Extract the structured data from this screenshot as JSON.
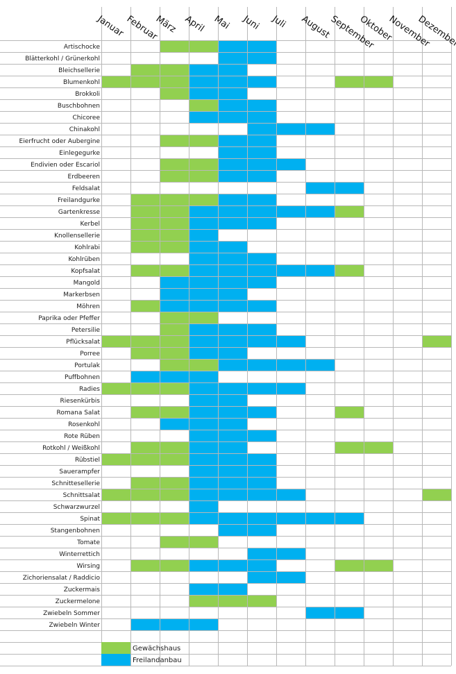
{
  "chart_data": {
    "type": "heatmap",
    "months": [
      "Januar",
      "Februar",
      "März",
      "April",
      "Mai",
      "Juni",
      "Juli",
      "August",
      "September",
      "Oktober",
      "November",
      "Dezember"
    ],
    "colors": {
      "gewaechshaus": "#92d050",
      "freiland": "#00b0f0",
      "grid": "#b8b8b8"
    },
    "legend": [
      {
        "key": "G",
        "label": "Gewächshaus",
        "color": "#92d050"
      },
      {
        "key": "F",
        "label": "Freilandanbau",
        "color": "#00b0f0"
      }
    ],
    "rows": [
      {
        "name": "Artischocke",
        "cells": "--GGFF------"
      },
      {
        "name": "Blätterkohl  / Grünerkohl",
        "cells": "----FF------"
      },
      {
        "name": "Bleichsellerie",
        "cells": "-GGFF-------"
      },
      {
        "name": "Blumenkohl",
        "cells": "GGGFFF--GG--"
      },
      {
        "name": "Brokkoli",
        "cells": "--GFF-------"
      },
      {
        "name": "Buschbohnen",
        "cells": "---GFF------"
      },
      {
        "name": "Chicoree",
        "cells": "---FFF------"
      },
      {
        "name": "Chinakohl",
        "cells": "-----FFF----"
      },
      {
        "name": "Eierfrucht  oder  Aubergine",
        "cells": "--GGFF------"
      },
      {
        "name": "Einlegegurke",
        "cells": "----FF------"
      },
      {
        "name": "Endivien oder Escariol",
        "cells": "--GGFFF-----"
      },
      {
        "name": "Erdbeeren",
        "cells": "--GGFF------"
      },
      {
        "name": "Feldsalat",
        "cells": "-------FF---"
      },
      {
        "name": "Freilandgurke",
        "cells": "-GGGFF------"
      },
      {
        "name": "Gartenkresse",
        "cells": "-GGFFFFFG---"
      },
      {
        "name": "Kerbel",
        "cells": "-GGFFF------"
      },
      {
        "name": "Knollensellerie",
        "cells": "-GGF--------"
      },
      {
        "name": "Kohlrabi",
        "cells": "-GGFF-------"
      },
      {
        "name": "Kohlrüben",
        "cells": "---FFF------"
      },
      {
        "name": "Kopfsalat",
        "cells": "-GGFFFFFG---"
      },
      {
        "name": "Mangold",
        "cells": "--FFFF------"
      },
      {
        "name": "Markerbsen",
        "cells": "--FFF-------"
      },
      {
        "name": "Möhren",
        "cells": "-GFFFF------"
      },
      {
        "name": "Paprika oder Pfeffer",
        "cells": "--GG--------"
      },
      {
        "name": "Petersilie",
        "cells": "--GFFF------"
      },
      {
        "name": "Pflücksalat",
        "cells": "GGGFFFF----G"
      },
      {
        "name": "Porree",
        "cells": "-GGFF-------"
      },
      {
        "name": "Portulak",
        "cells": "--GGFFFF----"
      },
      {
        "name": "Puffbohnen",
        "cells": "-FFF--------"
      },
      {
        "name": "Radies",
        "cells": "GGGFFFF-----"
      },
      {
        "name": "Riesenkürbis",
        "cells": "---FF-------"
      },
      {
        "name": "Romana Salat",
        "cells": "-GGFFF--G---"
      },
      {
        "name": "Rosenkohl",
        "cells": "--FFF-------"
      },
      {
        "name": "Rote Rüben",
        "cells": "---FFF------"
      },
      {
        "name": "Rotkohl  /  Weißkohl",
        "cells": "-GGFF---GG--"
      },
      {
        "name": "Rübstiel",
        "cells": "GGGFFF------"
      },
      {
        "name": "Sauerampfer",
        "cells": "---FFF------"
      },
      {
        "name": "Schnittesellerie",
        "cells": "-GGFFF------"
      },
      {
        "name": "Schnittsalat",
        "cells": "GGGFFFF----G"
      },
      {
        "name": "Schwarzwurzel",
        "cells": "---F--------"
      },
      {
        "name": "Spinat",
        "cells": "GGGFFFFFF---"
      },
      {
        "name": "Stangenbohnen",
        "cells": "----FF------"
      },
      {
        "name": "Tomate",
        "cells": "--GG--------"
      },
      {
        "name": "Winterrettich",
        "cells": "-----FF-----"
      },
      {
        "name": "Wirsing",
        "cells": "-GGFFF--GG--"
      },
      {
        "name": "Zichoriensalat / Raddicio",
        "cells": "-----FF-----"
      },
      {
        "name": "Zuckermais",
        "cells": "---FF-------"
      },
      {
        "name": "Zuckermelone",
        "cells": "---GGG------"
      },
      {
        "name": "Zwiebeln Sommer",
        "cells": "-------FF---"
      },
      {
        "name": "Zwiebeln Winter",
        "cells": "-FFF--------"
      }
    ]
  }
}
